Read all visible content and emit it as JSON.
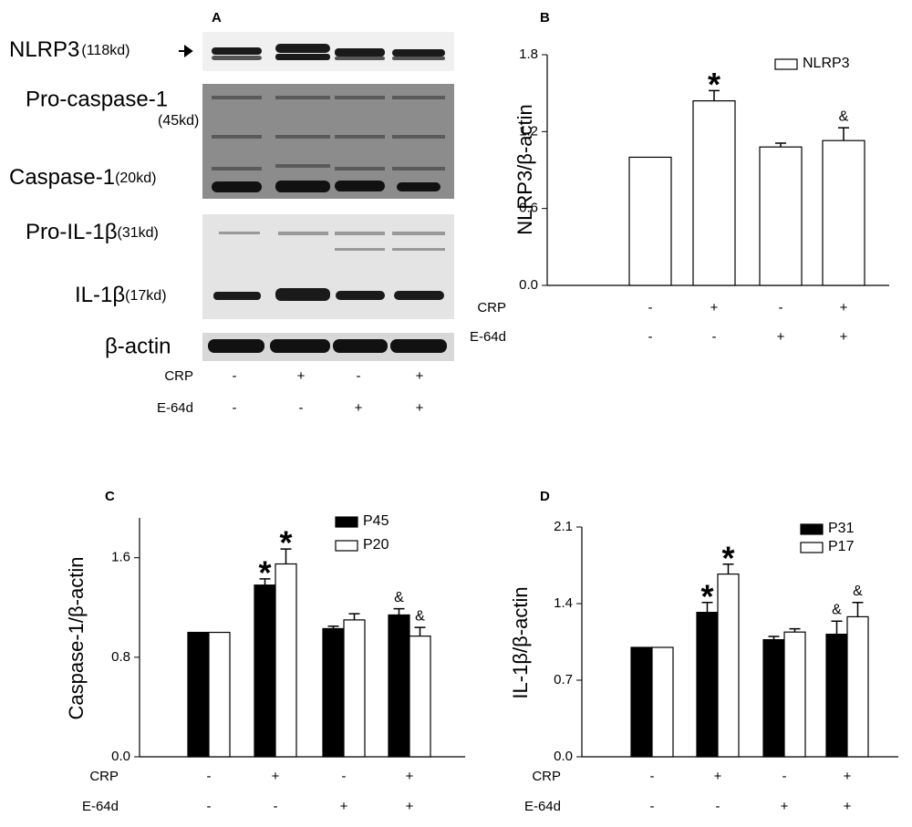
{
  "blot": {
    "panel_label": "A",
    "bands": [
      {
        "name": "NLRP3",
        "size": "(118kd)"
      },
      {
        "name": "Pro-caspase-1",
        "size": "(45kd)"
      },
      {
        "name": "Caspase-1",
        "size": "(20kd)"
      },
      {
        "name": "Pro-IL-1β",
        "size": "(31kd)"
      },
      {
        "name": "IL-1β",
        "size": "(17kd)"
      },
      {
        "name": "β-actin"
      }
    ],
    "conditions": [
      {
        "name": "CRP",
        "signs": [
          "-",
          "+",
          "-",
          "+"
        ]
      },
      {
        "name": "E-64d",
        "signs": [
          "-",
          "-",
          "+",
          "+"
        ]
      }
    ]
  },
  "chart_data": [
    {
      "type": "bar",
      "panel_label": "B",
      "y_label": "NLRP3/β-actin",
      "conditions": [
        {
          "name": "CRP",
          "signs": [
            "-",
            "+",
            "-",
            "+"
          ]
        },
        {
          "name": "E-64d",
          "signs": [
            "-",
            "-",
            "+",
            "+"
          ]
        }
      ],
      "series": [
        {
          "name": "NLRP3",
          "color": "#ffffff",
          "values": [
            1.0,
            1.44,
            1.08,
            1.13
          ],
          "errors": [
            null,
            0.08,
            0.03,
            0.1
          ],
          "annotations": [
            null,
            "*",
            null,
            "&"
          ]
        }
      ],
      "ylim": [
        0,
        1.8
      ],
      "yticks": [
        {
          "value": 0,
          "label": "0.0"
        },
        0.6,
        1.2,
        1.8
      ]
    },
    {
      "type": "bar",
      "panel_label": "C",
      "y_label": "Caspase-1/β-actin",
      "conditions": [
        {
          "name": "CRP",
          "signs": [
            "-",
            "+",
            "-",
            "+"
          ]
        },
        {
          "name": "E-64d",
          "signs": [
            "-",
            "-",
            "+",
            "+"
          ]
        }
      ],
      "series": [
        {
          "name": "P45",
          "color": "#000000",
          "values": [
            1.0,
            1.38,
            1.03,
            1.14
          ],
          "errors": [
            null,
            0.05,
            0.02,
            0.05
          ],
          "annotations": [
            null,
            "*",
            null,
            "&"
          ]
        },
        {
          "name": "P20",
          "color": "#ffffff",
          "values": [
            1.0,
            1.55,
            1.1,
            0.97
          ],
          "errors": [
            null,
            0.12,
            0.05,
            0.07
          ],
          "annotations": [
            null,
            "*",
            null,
            "&"
          ]
        }
      ],
      "ylim": [
        0,
        1.92
      ],
      "yticks": [
        {
          "value": 0,
          "label": "0.0"
        },
        0.8,
        1.6
      ]
    },
    {
      "type": "bar",
      "panel_label": "D",
      "y_label": "IL-1β/β-actin",
      "conditions": [
        {
          "name": "CRP",
          "signs": [
            "-",
            "+",
            "-",
            "+"
          ]
        },
        {
          "name": "E-64d",
          "signs": [
            "-",
            "-",
            "+",
            "+"
          ]
        }
      ],
      "series": [
        {
          "name": "P31",
          "color": "#000000",
          "values": [
            1.0,
            1.32,
            1.07,
            1.12
          ],
          "errors": [
            null,
            0.09,
            0.03,
            0.12
          ],
          "annotations": [
            null,
            "*",
            null,
            "&"
          ]
        },
        {
          "name": "P17",
          "color": "#ffffff",
          "values": [
            1.0,
            1.67,
            1.14,
            1.28
          ],
          "errors": [
            null,
            0.09,
            0.03,
            0.13
          ],
          "annotations": [
            null,
            "*",
            null,
            "&"
          ]
        }
      ],
      "ylim": [
        0,
        2.1
      ],
      "yticks": [
        {
          "value": 0,
          "label": "0.0"
        },
        0.7,
        1.4,
        2.1
      ]
    }
  ]
}
